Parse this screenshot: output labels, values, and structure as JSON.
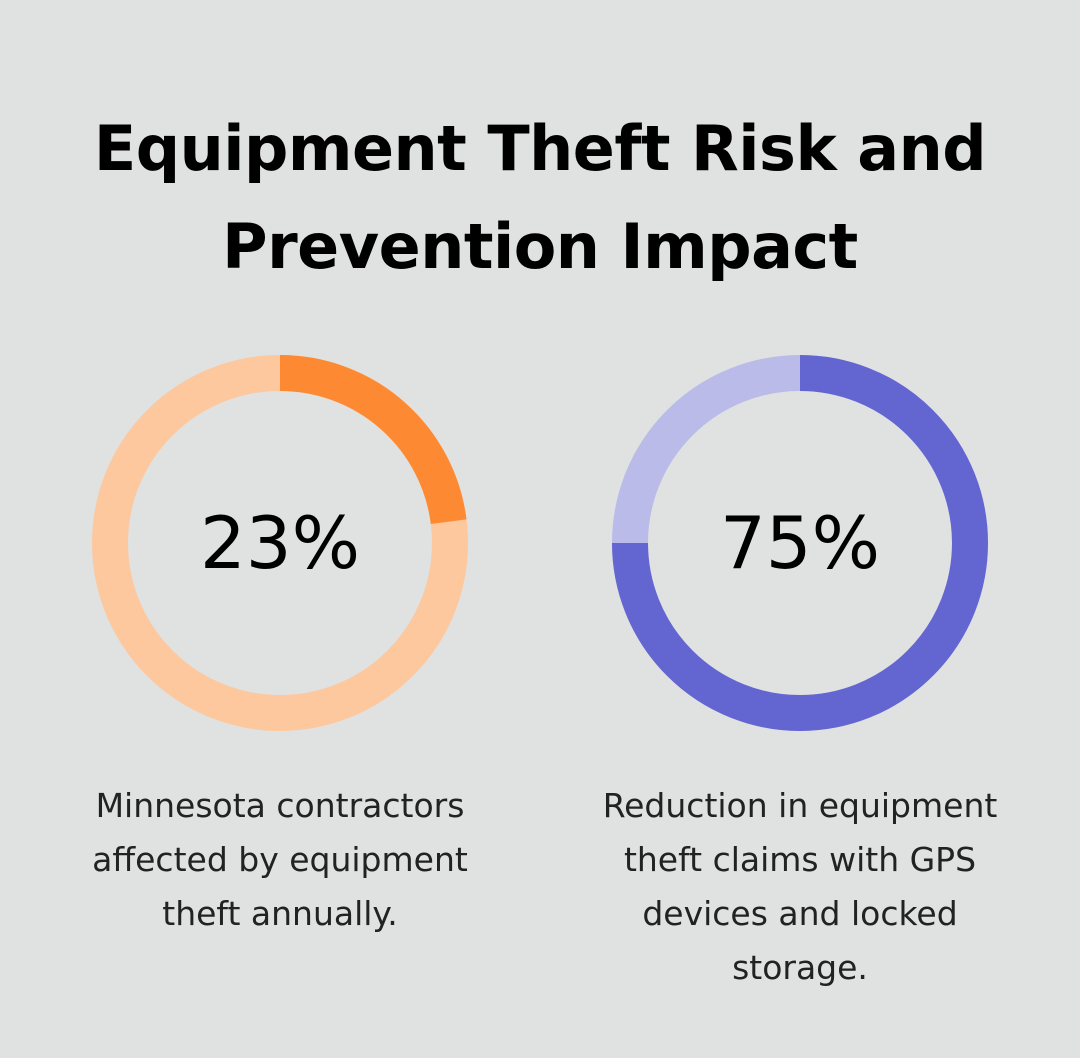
{
  "title": {
    "line1": "Equipment Theft Risk and",
    "line2": "Prevention Impact"
  },
  "colors": {
    "background": "#e0e1e1",
    "orange_fill": "#fd8a33",
    "orange_track": "#fdc89e",
    "purple_fill": "#6366d1",
    "purple_track": "#babbe9"
  },
  "chart_data": [
    {
      "type": "pie",
      "style": "donut",
      "value": 23,
      "label": "23%",
      "caption": "Minnesota contractors affected by equipment theft annually.",
      "fill_color": "#fd8a33",
      "track_color": "#fdc89e"
    },
    {
      "type": "pie",
      "style": "donut",
      "value": 75,
      "label": "75%",
      "caption": "Reduction in equipment theft claims with GPS devices and locked storage.",
      "fill_color": "#6366d1",
      "track_color": "#babbe9"
    }
  ]
}
